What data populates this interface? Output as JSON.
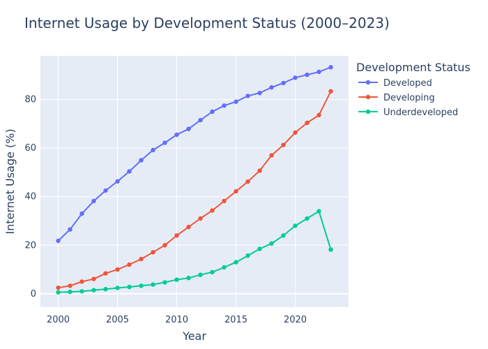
{
  "chart_data": {
    "type": "line",
    "title": "Internet Usage by Development Status (2000–2023)",
    "xlabel": "Year",
    "ylabel": "Internet Usage (%)",
    "xlim": [
      1998.5,
      2024.5
    ],
    "ylim": [
      -5.5,
      98
    ],
    "xticks": [
      2000,
      2005,
      2010,
      2015,
      2020
    ],
    "yticks": [
      0,
      20,
      40,
      60,
      80
    ],
    "grid": true,
    "legend": {
      "title": "Development Status",
      "position": "top-right"
    },
    "x": [
      2000,
      2001,
      2002,
      2003,
      2004,
      2005,
      2006,
      2007,
      2008,
      2009,
      2010,
      2011,
      2012,
      2013,
      2014,
      2015,
      2016,
      2017,
      2018,
      2019,
      2020,
      2021,
      2022,
      2023
    ],
    "series": [
      {
        "name": "Developed",
        "color": "#636efa",
        "values": [
          21.8,
          26.5,
          33.0,
          38.2,
          42.5,
          46.3,
          50.4,
          55.0,
          59.2,
          62.2,
          65.5,
          67.9,
          71.5,
          75.0,
          77.5,
          79.1,
          81.5,
          82.7,
          85.0,
          86.8,
          89.0,
          90.2,
          91.4,
          93.3
        ]
      },
      {
        "name": "Developing",
        "color": "#ef553b",
        "values": [
          2.5,
          3.3,
          5.0,
          6.1,
          8.4,
          10.0,
          12.0,
          14.3,
          17.1,
          20.0,
          24.0,
          27.5,
          31.0,
          34.3,
          38.2,
          42.2,
          46.2,
          50.7,
          57.0,
          61.3,
          66.4,
          70.4,
          73.6,
          83.4
        ]
      },
      {
        "name": "Underdeveloped",
        "color": "#00cc96",
        "values": [
          0.6,
          0.8,
          1.0,
          1.5,
          1.9,
          2.4,
          2.8,
          3.3,
          3.8,
          4.7,
          5.8,
          6.5,
          7.8,
          8.9,
          10.9,
          13.0,
          15.7,
          18.5,
          20.7,
          24.0,
          28.0,
          31.0,
          34.0,
          18.2
        ]
      }
    ]
  }
}
